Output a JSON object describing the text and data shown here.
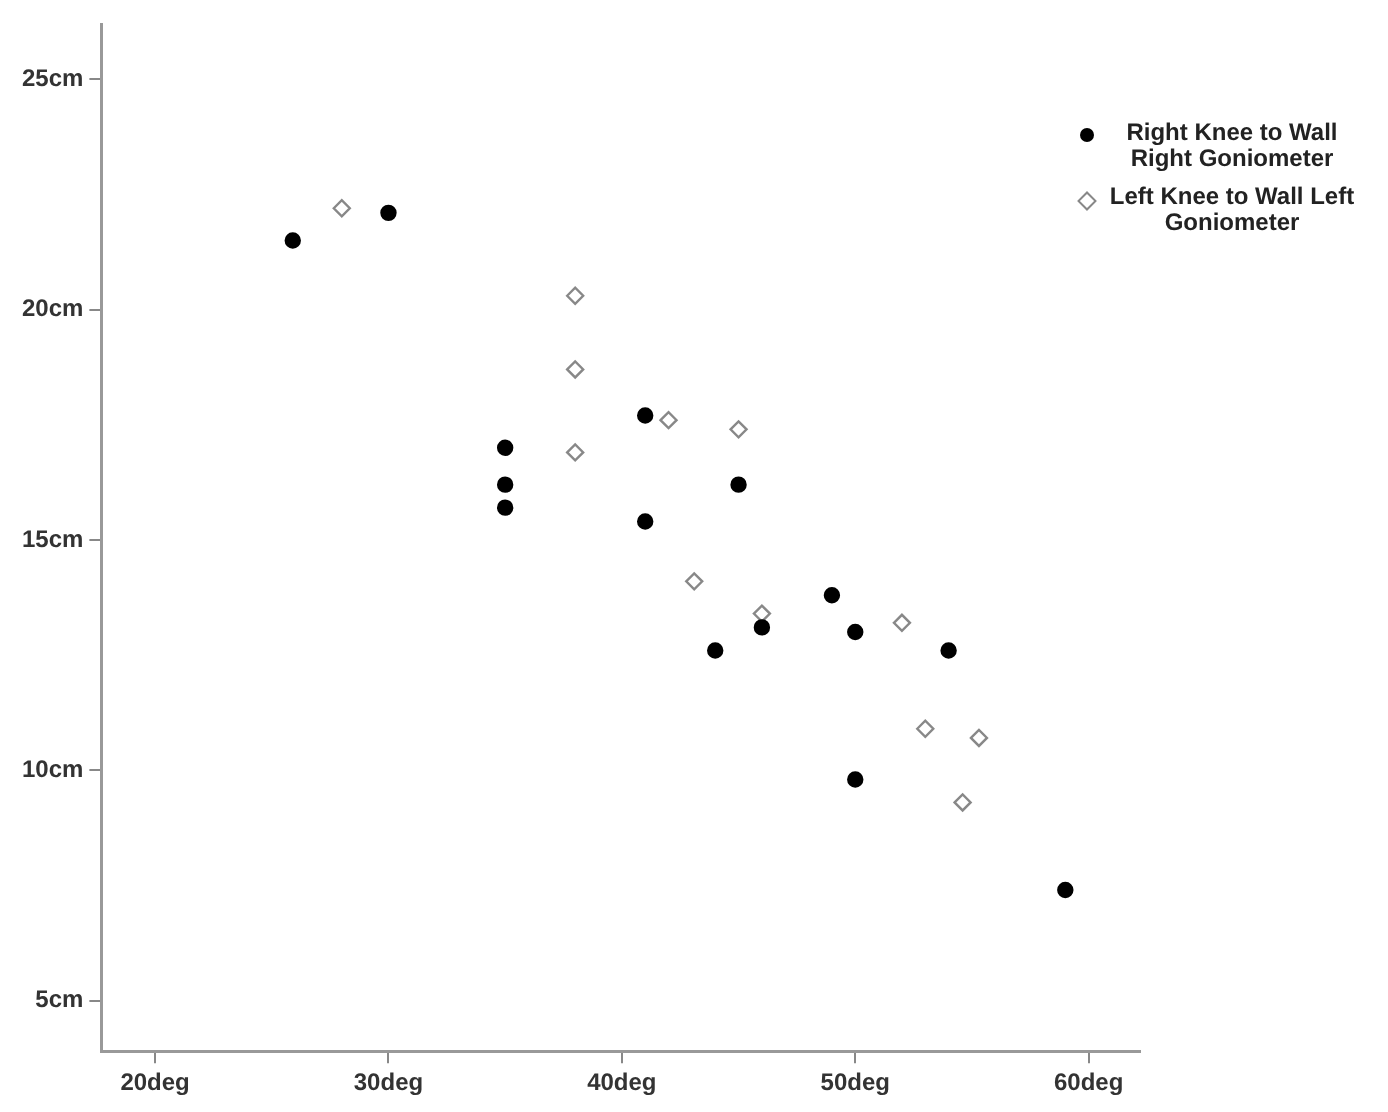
{
  "chart_data": {
    "type": "scatter",
    "xlim": [
      17.7,
      62.2
    ],
    "ylim": [
      3.9,
      26.2
    ],
    "xticks": [
      {
        "value": 20,
        "label": "20deg"
      },
      {
        "value": 30,
        "label": "30deg"
      },
      {
        "value": 40,
        "label": "40deg"
      },
      {
        "value": 50,
        "label": "50deg"
      },
      {
        "value": 60,
        "label": "60deg"
      }
    ],
    "yticks": [
      {
        "value": 5,
        "label": "5cm"
      },
      {
        "value": 10,
        "label": "10cm"
      },
      {
        "value": 15,
        "label": "15cm"
      },
      {
        "value": 20,
        "label": "20cm"
      },
      {
        "value": 25,
        "label": "25cm"
      }
    ],
    "grid": false,
    "legend": "top right",
    "series": [
      {
        "name": "Right Knee to Wall Right Goniometer",
        "color": "#000000",
        "marker": "circle",
        "x": [
          25.9,
          30.0,
          35.0,
          35.0,
          35.0,
          41.0,
          45.0,
          41.0,
          46.0,
          44.0,
          49.0,
          50.0,
          54.0,
          50.0,
          59.0
        ],
        "values": [
          21.5,
          22.1,
          17.0,
          16.2,
          15.7,
          17.7,
          16.2,
          15.4,
          13.1,
          12.6,
          13.8,
          13.0,
          12.6,
          9.8,
          7.4
        ]
      },
      {
        "name": "Left Knee to Wall Left Goniometer",
        "color": "#888888",
        "marker": "diamond",
        "x": [
          28.0,
          38.0,
          38.0,
          38.0,
          42.0,
          45.0,
          43.1,
          46.0,
          52.0,
          53.0,
          55.3,
          54.6
        ],
        "values": [
          22.2,
          20.3,
          18.7,
          16.9,
          17.6,
          17.4,
          14.1,
          13.4,
          13.2,
          10.9,
          10.7,
          9.3
        ]
      }
    ]
  }
}
